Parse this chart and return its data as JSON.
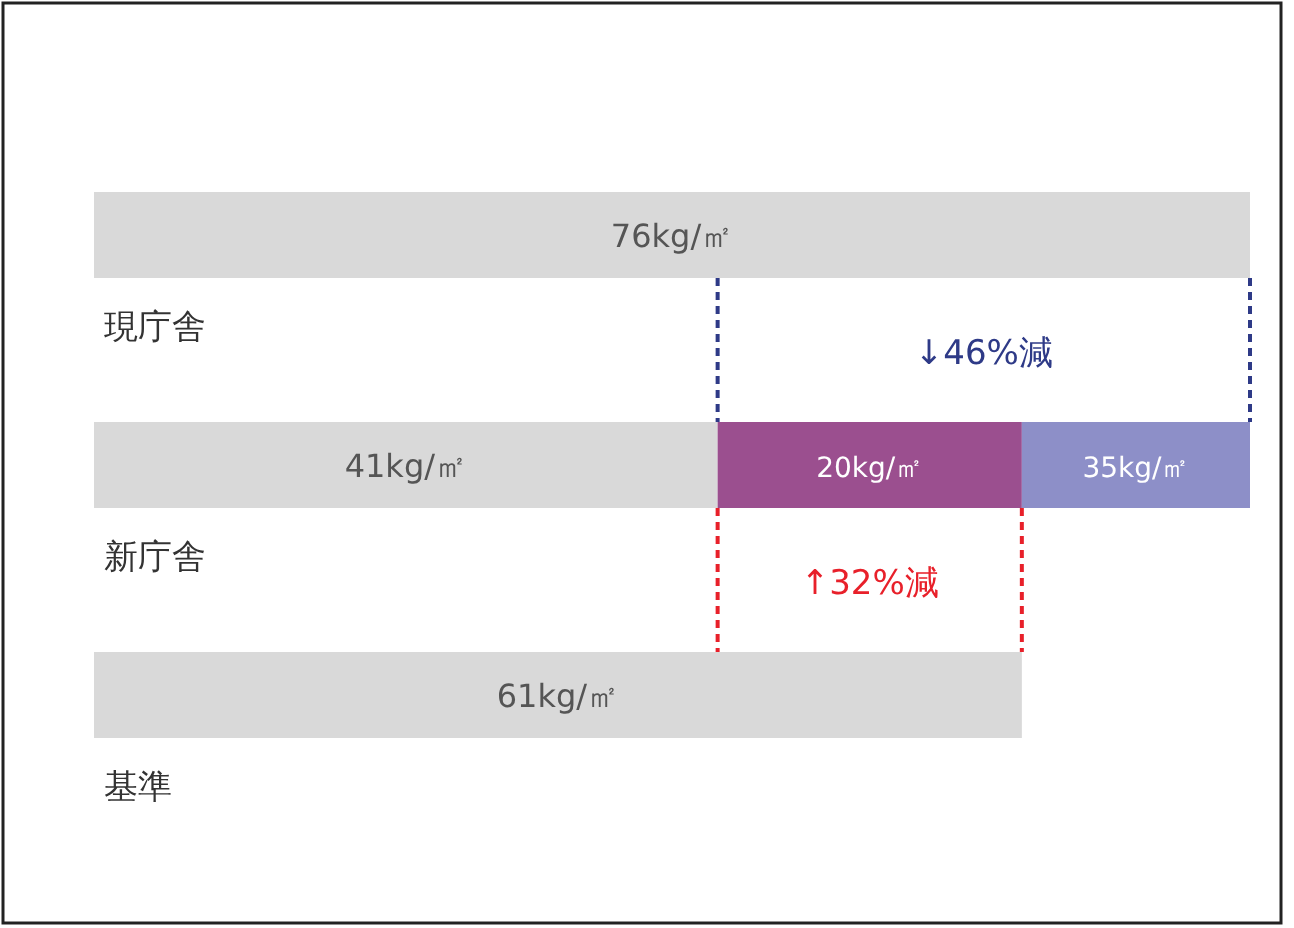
{
  "chart_data": {
    "type": "bar",
    "orientation": "horizontal",
    "stacked": true,
    "categories": [
      "現庁舎",
      "新庁舎",
      "基準"
    ],
    "series": [
      {
        "color": "#d9d9d9",
        "values": [
          76,
          41,
          61
        ],
        "value_labels": [
          "76kg/㎡",
          "41kg/㎡",
          "61kg/㎡"
        ]
      },
      {
        "color": "#9b4f8f",
        "values": [
          null,
          20,
          null
        ],
        "value_labels": [
          null,
          "20kg/㎡",
          null
        ]
      },
      {
        "color": "#8d8fc8",
        "values": [
          null,
          15,
          null
        ]
      }
    ],
    "annotations": [
      "↓46%減",
      "↑32%減",
      "35kg/㎡"
    ]
  }
}
